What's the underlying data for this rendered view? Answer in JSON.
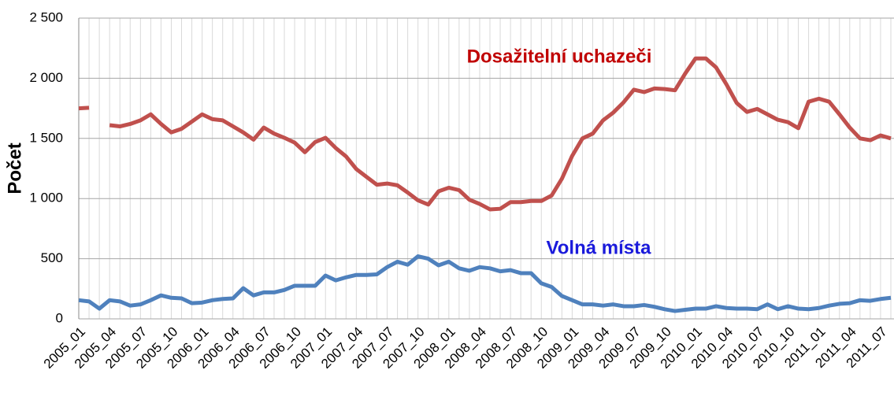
{
  "chart_data": {
    "type": "line",
    "y_label": "Počet",
    "categories": [
      "2005_01",
      null,
      null,
      "2005_04",
      null,
      null,
      "2005_07",
      null,
      null,
      "2005_10",
      null,
      null,
      "2006_01",
      null,
      null,
      "2006_04",
      null,
      null,
      "2006_07",
      null,
      null,
      "2006_10",
      null,
      null,
      "2007_01",
      null,
      null,
      "2007_04",
      null,
      null,
      "2007_07",
      null,
      null,
      "2007_10",
      null,
      null,
      "2008_01",
      null,
      null,
      "2008_04",
      null,
      null,
      "2008_07",
      null,
      null,
      "2008_10",
      null,
      null,
      "2009_01",
      null,
      null,
      "2009_04",
      null,
      null,
      "2009_07",
      null,
      null,
      "2009_10",
      null,
      null,
      "2010_01",
      null,
      null,
      "2010_04",
      null,
      null,
      "2010_07",
      null,
      null,
      "2010_10",
      null,
      null,
      "2011_01",
      null,
      null,
      "2011_04",
      null,
      null,
      "2011_07",
      null
    ],
    "series": [
      {
        "name": "Dosažitelní uchazeči",
        "color": "#c0504d",
        "label_color": "#c00000",
        "values": [
          1750,
          1755,
          null,
          1610,
          1600,
          1620,
          1650,
          1700,
          1620,
          1550,
          1580,
          1640,
          1700,
          1660,
          1650,
          1600,
          1550,
          1490,
          1590,
          1540,
          1505,
          1465,
          1385,
          1470,
          1505,
          1420,
          1350,
          1245,
          1180,
          1115,
          1125,
          1110,
          1050,
          985,
          950,
          1060,
          1090,
          1070,
          990,
          955,
          910,
          915,
          970,
          970,
          980,
          980,
          1025,
          1165,
          1355,
          1500,
          1540,
          1650,
          1715,
          1800,
          1905,
          1885,
          1915,
          1910,
          1900,
          2040,
          2165,
          2165,
          2090,
          1950,
          1795,
          1720,
          1745,
          1700,
          1655,
          1635,
          1585,
          1805,
          1830,
          1805,
          1700,
          1590,
          1500,
          1485,
          1525,
          1500
        ]
      },
      {
        "name": "Volná místa",
        "color": "#4f81bd",
        "label_color": "#1a1adb",
        "values": [
          155,
          145,
          85,
          155,
          145,
          110,
          120,
          155,
          195,
          175,
          170,
          130,
          135,
          155,
          165,
          170,
          255,
          195,
          220,
          220,
          240,
          275,
          275,
          275,
          360,
          320,
          345,
          365,
          365,
          370,
          430,
          475,
          450,
          520,
          500,
          445,
          475,
          420,
          400,
          430,
          420,
          395,
          405,
          380,
          380,
          295,
          265,
          190,
          155,
          120,
          120,
          110,
          120,
          105,
          105,
          115,
          100,
          80,
          65,
          75,
          85,
          85,
          105,
          90,
          85,
          85,
          80,
          120,
          80,
          105,
          85,
          80,
          90,
          110,
          125,
          130,
          155,
          150,
          165,
          175
        ]
      }
    ],
    "ylim": [
      0,
      2500
    ],
    "yticks": [
      0,
      {
        "value": 500,
        "label": "500"
      },
      {
        "value": 1000,
        "label": "1 000"
      },
      {
        "value": 1500,
        "label": "1 500"
      },
      {
        "value": 2000,
        "label": "2 000"
      },
      {
        "value": 2500,
        "label": "2 500"
      }
    ],
    "grid": true
  }
}
